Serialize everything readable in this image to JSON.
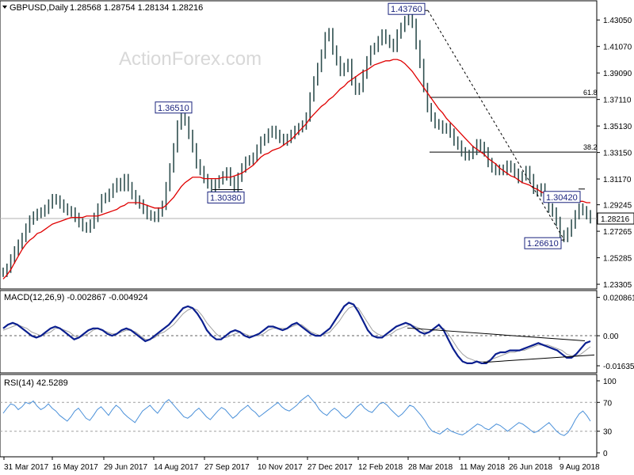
{
  "header": {
    "symbol": "GBPUSD,Daily",
    "ohlc": "1.28568 1.28754 1.28134 1.28216",
    "watermark": "ActionForex.com"
  },
  "colors": {
    "price": "#2f4f4f",
    "ma": "#e00000",
    "macd": "#0b1f8f",
    "signal": "#a0a0a0",
    "rsi": "#4a90d9",
    "annotation": "#1a237e",
    "trendline": "#000000",
    "watermark": "#d8d8d8"
  },
  "chart_data": [
    {
      "type": "line",
      "panel": "price",
      "title": "GBPUSD,Daily",
      "ohlc_label": "1.28568 1.28754 1.28134 1.28216",
      "x_ticks": [
        "31 Mar 2017",
        "16 May 2017",
        "29 Jun 2017",
        "14 Aug 2017",
        "27 Sep 2017",
        "10 Nov 2017",
        "27 Dec 2017",
        "12 Feb 2018",
        "28 Mar 2018",
        "11 May 2018",
        "26 Jun 2018",
        "9 Aug 2018"
      ],
      "y_ticks": [
        "1.43050",
        "1.41070",
        "1.39090",
        "1.37110",
        "1.35130",
        "1.33150",
        "1.31170",
        "1.29245",
        "1.27265",
        "1.25285",
        "1.23305"
      ],
      "ylim": [
        1.2325,
        1.4395
      ],
      "last_price_label": "1.28216",
      "series": [
        {
          "key": "close",
          "values": [
            1.242,
            1.245,
            1.252,
            1.258,
            1.263,
            1.268,
            1.275,
            1.281,
            1.284,
            1.286,
            1.287,
            1.289,
            1.293,
            1.297,
            1.296,
            1.293,
            1.29,
            1.288,
            1.287,
            1.283,
            1.279,
            1.276,
            1.275,
            1.278,
            1.283,
            1.29,
            1.297,
            1.298,
            1.301,
            1.305,
            1.309,
            1.306,
            1.312,
            1.306,
            1.3,
            1.296,
            1.293,
            1.289,
            1.285,
            1.284,
            1.283,
            1.287,
            1.292,
            1.306,
            1.32,
            1.335,
            1.352,
            1.36,
            1.355,
            1.345,
            1.335,
            1.323,
            1.318,
            1.312,
            1.308,
            1.305,
            1.308,
            1.311,
            1.314,
            1.317,
            1.31,
            1.305,
            1.313,
            1.32,
            1.325,
            1.326,
            1.328,
            1.334,
            1.34,
            1.342,
            1.346,
            1.348,
            1.345,
            1.342,
            1.34,
            1.342,
            1.345,
            1.348,
            1.35,
            1.352,
            1.358,
            1.373,
            1.385,
            1.395,
            1.405,
            1.418,
            1.421,
            1.408,
            1.4,
            1.392,
            1.395,
            1.398,
            1.385,
            1.378,
            1.38,
            1.39,
            1.4,
            1.408,
            1.41,
            1.415,
            1.42,
            1.416,
            1.413,
            1.41,
            1.42,
            1.425,
            1.43,
            1.431,
            1.428,
            1.412,
            1.398,
            1.38,
            1.365,
            1.358,
            1.353,
            1.352,
            1.349,
            1.35,
            1.346,
            1.34,
            1.337,
            1.332,
            1.329,
            1.33,
            1.333,
            1.338,
            1.336,
            1.332,
            1.324,
            1.32,
            1.318,
            1.319,
            1.318,
            1.322,
            1.32,
            1.316,
            1.312,
            1.314,
            1.318,
            1.312,
            1.304,
            1.302,
            1.305,
            1.298,
            1.29,
            1.287,
            1.28,
            1.27,
            1.268,
            1.272,
            1.278,
            1.285,
            1.29,
            1.288,
            1.285,
            1.282
          ]
        },
        {
          "key": "ma",
          "values": [
            1.237,
            1.24,
            1.244,
            1.249,
            1.254,
            1.259,
            1.263,
            1.266,
            1.268,
            1.271,
            1.272,
            1.274,
            1.276,
            1.278,
            1.279,
            1.28,
            1.281,
            1.282,
            1.283,
            1.283,
            1.283,
            1.283,
            1.284,
            1.284,
            1.284,
            1.284,
            1.285,
            1.286,
            1.287,
            1.288,
            1.289,
            1.291,
            1.292,
            1.294,
            1.294,
            1.294,
            1.294,
            1.293,
            1.292,
            1.291,
            1.29,
            1.29,
            1.29,
            1.292,
            1.295,
            1.298,
            1.302,
            1.306,
            1.309,
            1.311,
            1.313,
            1.313,
            1.313,
            1.312,
            1.312,
            1.312,
            1.312,
            1.312,
            1.313,
            1.313,
            1.313,
            1.314,
            1.315,
            1.316,
            1.318,
            1.32,
            1.322,
            1.325,
            1.328,
            1.33,
            1.331,
            1.333,
            1.334,
            1.335,
            1.337,
            1.339,
            1.341,
            1.344,
            1.347,
            1.35,
            1.353,
            1.357,
            1.36,
            1.363,
            1.366,
            1.368,
            1.371,
            1.373,
            1.376,
            1.379,
            1.381,
            1.384,
            1.386,
            1.388,
            1.39,
            1.392,
            1.393,
            1.395,
            1.397,
            1.398,
            1.399,
            1.4,
            1.4,
            1.401,
            1.401,
            1.4,
            1.398,
            1.395,
            1.392,
            1.388,
            1.384,
            1.38,
            1.376,
            1.372,
            1.368,
            1.364,
            1.361,
            1.357,
            1.354,
            1.351,
            1.348,
            1.345,
            1.342,
            1.339,
            1.336,
            1.334,
            1.332,
            1.33,
            1.327,
            1.325,
            1.323,
            1.32,
            1.318,
            1.316,
            1.314,
            1.313,
            1.311,
            1.309,
            1.308,
            1.307,
            1.305,
            1.304,
            1.302,
            1.301,
            1.3,
            1.3,
            1.299,
            1.298,
            1.297,
            1.297,
            1.296,
            1.296,
            1.295,
            1.295,
            1.294,
            1.294
          ]
        }
      ],
      "annotations": [
        {
          "text": "1.43760",
          "value": 1.4376
        },
        {
          "text": "1.36510",
          "value": 1.3651
        },
        {
          "text": "1.30380",
          "value": 1.3038
        },
        {
          "text": "1.30420",
          "value": 1.3042
        },
        {
          "text": "1.26610",
          "value": 1.2661
        }
      ],
      "fib_levels": [
        {
          "label": "61.8",
          "value": 1.3727
        },
        {
          "label": "38.2",
          "value": 1.3318
        }
      ]
    },
    {
      "type": "line",
      "panel": "macd",
      "title": "MACD(12,26,9) -0.002867 -0.004924",
      "y_ticks": [
        "0.020861",
        "0.00",
        "-0.016357"
      ],
      "ylim": [
        -0.0185,
        0.022
      ],
      "zero_label": "0.00",
      "series": [
        {
          "key": "macd",
          "values": [
            0.004,
            0.006,
            0.007,
            0.006,
            0.004,
            0.002,
            0.0,
            -0.001,
            0.0,
            0.002,
            0.004,
            0.005,
            0.004,
            0.002,
            0.0,
            -0.002,
            -0.001,
            0.001,
            0.003,
            0.004,
            0.004,
            0.003,
            0.001,
            0.0,
            0.001,
            0.003,
            0.004,
            0.003,
            0.001,
            -0.001,
            -0.003,
            -0.002,
            0.0,
            0.002,
            0.004,
            0.006,
            0.009,
            0.012,
            0.015,
            0.016,
            0.015,
            0.012,
            0.008,
            0.003,
            0.0,
            -0.002,
            -0.002,
            0.0,
            0.002,
            0.003,
            0.002,
            0.0,
            -0.001,
            0.0,
            0.001,
            0.003,
            0.005,
            0.005,
            0.004,
            0.003,
            0.004,
            0.006,
            0.007,
            0.005,
            0.003,
            0.001,
            0.0,
            0.0,
            0.002,
            0.004,
            0.008,
            0.012,
            0.016,
            0.018,
            0.017,
            0.013,
            0.008,
            0.003,
            0.0,
            -0.001,
            -0.001,
            0.001,
            0.003,
            0.005,
            0.006,
            0.007,
            0.006,
            0.004,
            0.002,
            0.001,
            0.002,
            0.004,
            0.006,
            0.003,
            -0.002,
            -0.007,
            -0.011,
            -0.014,
            -0.015,
            -0.015,
            -0.014,
            -0.015,
            -0.015,
            -0.013,
            -0.01,
            -0.009,
            -0.009,
            -0.008,
            -0.008,
            -0.008,
            -0.007,
            -0.006,
            -0.005,
            -0.004,
            -0.005,
            -0.006,
            -0.007,
            -0.008,
            -0.01,
            -0.012,
            -0.012,
            -0.01,
            -0.007,
            -0.004,
            -0.003
          ]
        },
        {
          "key": "signal",
          "values": [
            0.003,
            0.004,
            0.005,
            0.006,
            0.005,
            0.004,
            0.002,
            0.001,
            0.0,
            0.001,
            0.002,
            0.004,
            0.004,
            0.003,
            0.002,
            0.0,
            -0.001,
            0.0,
            0.001,
            0.003,
            0.004,
            0.003,
            0.002,
            0.001,
            0.001,
            0.002,
            0.003,
            0.003,
            0.002,
            0.0,
            -0.002,
            -0.002,
            -0.001,
            0.001,
            0.002,
            0.004,
            0.006,
            0.009,
            0.012,
            0.014,
            0.015,
            0.014,
            0.011,
            0.007,
            0.004,
            0.001,
            -0.001,
            -0.001,
            0.0,
            0.001,
            0.002,
            0.001,
            0.0,
            0.0,
            0.0,
            0.001,
            0.003,
            0.004,
            0.004,
            0.004,
            0.004,
            0.005,
            0.006,
            0.006,
            0.004,
            0.002,
            0.001,
            0.0,
            0.001,
            0.002,
            0.005,
            0.008,
            0.012,
            0.015,
            0.016,
            0.015,
            0.011,
            0.007,
            0.003,
            0.001,
            0.0,
            0.0,
            0.001,
            0.003,
            0.004,
            0.005,
            0.006,
            0.005,
            0.004,
            0.002,
            0.002,
            0.003,
            0.004,
            0.004,
            0.001,
            -0.003,
            -0.007,
            -0.01,
            -0.012,
            -0.013,
            -0.014,
            -0.014,
            -0.014,
            -0.013,
            -0.012,
            -0.011,
            -0.01,
            -0.009,
            -0.009,
            -0.008,
            -0.008,
            -0.007,
            -0.006,
            -0.005,
            -0.005,
            -0.005,
            -0.006,
            -0.007,
            -0.008,
            -0.01,
            -0.011,
            -0.011,
            -0.01,
            -0.008,
            -0.006
          ]
        }
      ]
    },
    {
      "type": "line",
      "panel": "rsi",
      "title": "RSI(14) 42.5289",
      "y_ticks": [
        "100",
        "70",
        "30",
        "0"
      ],
      "ylim": [
        0,
        100
      ],
      "levels": [
        70,
        30
      ],
      "series": [
        {
          "key": "rsi",
          "values": [
            55,
            62,
            68,
            66,
            60,
            64,
            70,
            68,
            72,
            65,
            60,
            63,
            68,
            62,
            58,
            52,
            48,
            44,
            50,
            58,
            62,
            55,
            48,
            45,
            52,
            60,
            64,
            58,
            52,
            60,
            66,
            62,
            55,
            50,
            46,
            42,
            50,
            58,
            62,
            66,
            60,
            55,
            62,
            70,
            74,
            68,
            62,
            56,
            50,
            48,
            52,
            58,
            62,
            56,
            50,
            46,
            52,
            58,
            63,
            60,
            54,
            48,
            52,
            58,
            62,
            66,
            60,
            56,
            50,
            54,
            58,
            62,
            66,
            70,
            64,
            60,
            58,
            62,
            66,
            72,
            76,
            80,
            74,
            68,
            60,
            55,
            52,
            58,
            62,
            58,
            52,
            48,
            52,
            58,
            64,
            68,
            62,
            58,
            56,
            62,
            68,
            70,
            66,
            60,
            55,
            50,
            54,
            60,
            66,
            64,
            58,
            52,
            45,
            36,
            30,
            28,
            26,
            30,
            34,
            30,
            28,
            26,
            25,
            28,
            32,
            36,
            40,
            38,
            34,
            32,
            36,
            40,
            38,
            34,
            30,
            34,
            38,
            42,
            40,
            36,
            32,
            28,
            30,
            34,
            38,
            42,
            36,
            30,
            26,
            24,
            28,
            36,
            46,
            54,
            58,
            52,
            44
          ]
        }
      ]
    }
  ]
}
